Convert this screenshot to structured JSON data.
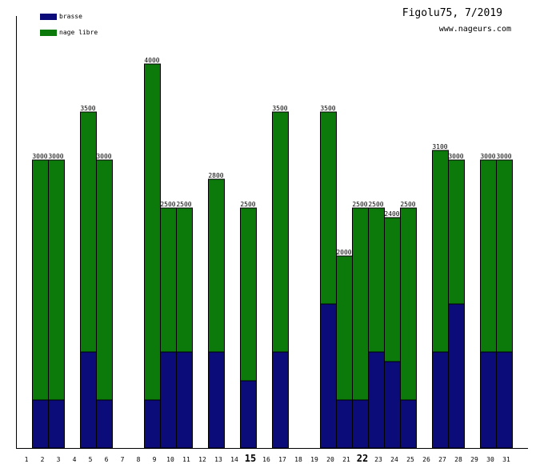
{
  "header": {
    "title": "Figolu75, 7/2019",
    "site": "www.nageurs.com"
  },
  "colors": {
    "brasse": "#0b0b7a",
    "nage_libre": "#0b7a0b"
  },
  "chart_data": {
    "type": "bar",
    "stacked": true,
    "categories": [
      "1",
      "2",
      "3",
      "4",
      "5",
      "6",
      "7",
      "8",
      "9",
      "10",
      "11",
      "12",
      "13",
      "14",
      "15",
      "16",
      "17",
      "18",
      "19",
      "20",
      "21",
      "22",
      "23",
      "24",
      "25",
      "26",
      "27",
      "28",
      "29",
      "30",
      "31"
    ],
    "highlighted_categories": [
      "15",
      "22"
    ],
    "series": [
      {
        "name": "brasse",
        "values": [
          0,
          500,
          500,
          0,
          1000,
          500,
          0,
          0,
          500,
          1000,
          1000,
          0,
          1000,
          0,
          700,
          0,
          1000,
          0,
          0,
          1500,
          500,
          500,
          1000,
          900,
          500,
          0,
          1000,
          1500,
          0,
          1000,
          1000
        ]
      },
      {
        "name": "nage libre",
        "values": [
          0,
          2500,
          2500,
          0,
          2500,
          2500,
          0,
          0,
          3500,
          1500,
          1500,
          0,
          1800,
          0,
          1800,
          0,
          2500,
          0,
          0,
          2000,
          1500,
          2000,
          1500,
          1500,
          2000,
          0,
          2100,
          1500,
          0,
          2000,
          2000
        ]
      }
    ],
    "totals": [
      0,
      3000,
      3000,
      0,
      3500,
      3000,
      0,
      0,
      4000,
      2500,
      2500,
      0,
      2800,
      0,
      2500,
      0,
      3500,
      0,
      0,
      3500,
      2000,
      2500,
      2500,
      2400,
      2500,
      0,
      3100,
      3000,
      0,
      3000,
      3000
    ],
    "ylim": [
      0,
      4000
    ],
    "legend": "top-left",
    "grid": false
  }
}
